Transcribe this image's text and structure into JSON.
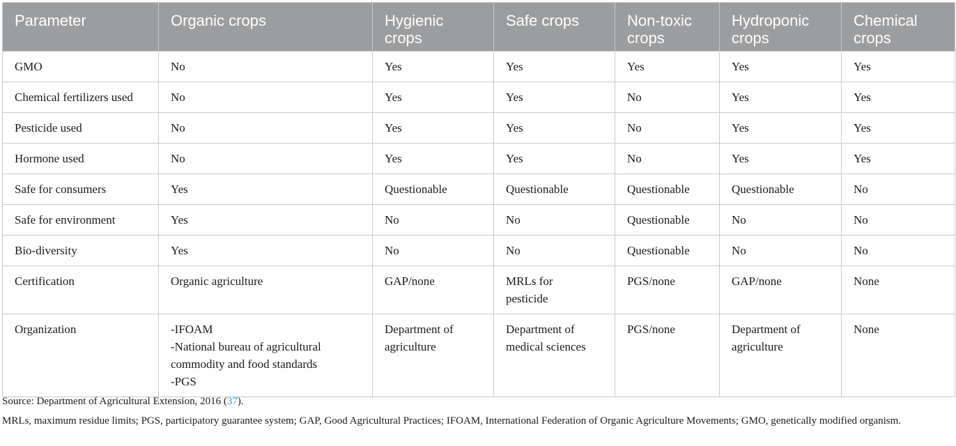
{
  "table": {
    "headers": [
      [
        "Parameter"
      ],
      [
        "Organic crops"
      ],
      [
        "Hygienic",
        "crops"
      ],
      [
        "Safe crops"
      ],
      [
        "Non-toxic",
        "crops"
      ],
      [
        "Hydroponic",
        "crops"
      ],
      [
        "Chemical",
        "crops"
      ]
    ],
    "rows": [
      [
        [
          "GMO"
        ],
        [
          "No"
        ],
        [
          "Yes"
        ],
        [
          "Yes"
        ],
        [
          "Yes"
        ],
        [
          "Yes"
        ],
        [
          "Yes"
        ]
      ],
      [
        [
          "Chemical fertilizers used"
        ],
        [
          "No"
        ],
        [
          "Yes"
        ],
        [
          "Yes"
        ],
        [
          "No"
        ],
        [
          "Yes"
        ],
        [
          "Yes"
        ]
      ],
      [
        [
          "Pesticide used"
        ],
        [
          "No"
        ],
        [
          "Yes"
        ],
        [
          "Yes"
        ],
        [
          "No"
        ],
        [
          "Yes"
        ],
        [
          "Yes"
        ]
      ],
      [
        [
          "Hormone used"
        ],
        [
          "No"
        ],
        [
          "Yes"
        ],
        [
          "Yes"
        ],
        [
          "No"
        ],
        [
          "Yes"
        ],
        [
          "Yes"
        ]
      ],
      [
        [
          "Safe for consumers"
        ],
        [
          "Yes"
        ],
        [
          "Questionable"
        ],
        [
          "Questionable"
        ],
        [
          "Questionable"
        ],
        [
          "Questionable"
        ],
        [
          "No"
        ]
      ],
      [
        [
          "Safe for environment"
        ],
        [
          "Yes"
        ],
        [
          "No"
        ],
        [
          "No"
        ],
        [
          "Questionable"
        ],
        [
          "No"
        ],
        [
          "No"
        ]
      ],
      [
        [
          "Bio-diversity"
        ],
        [
          "Yes"
        ],
        [
          "No"
        ],
        [
          "No"
        ],
        [
          "Questionable"
        ],
        [
          "No"
        ],
        [
          "No"
        ]
      ],
      [
        [
          "Certification"
        ],
        [
          "Organic agriculture"
        ],
        [
          "GAP/none"
        ],
        [
          "MRLs for",
          "pesticide"
        ],
        [
          "PGS/none"
        ],
        [
          "GAP/none"
        ],
        [
          "None"
        ]
      ],
      [
        [
          "Organization"
        ],
        [
          "-IFOAM",
          "-National bureau of agricultural",
          "commodity and food standards",
          "-PGS"
        ],
        [
          "Department of",
          "agriculture"
        ],
        [
          "Department of",
          "medical sciences"
        ],
        [
          "PGS/none"
        ],
        [
          "Department of",
          "agriculture"
        ],
        [
          "None"
        ]
      ]
    ]
  },
  "footer": {
    "source_prefix": "Source: Department of Agricultural Extension, 2016 (",
    "source_ref": "37",
    "source_suffix": ").",
    "notes": "MRLs, maximum residue limits; PGS, participatory guarantee system; GAP, Good Agricultural Practices; IFOAM, International Federation of Organic Agriculture Movements; GMO, genetically modified organism."
  },
  "colors": {
    "header_bg": "#9c9d9f",
    "header_text": "#ffffff",
    "grid": "#c9c9c9",
    "link": "#2aa4c8"
  }
}
